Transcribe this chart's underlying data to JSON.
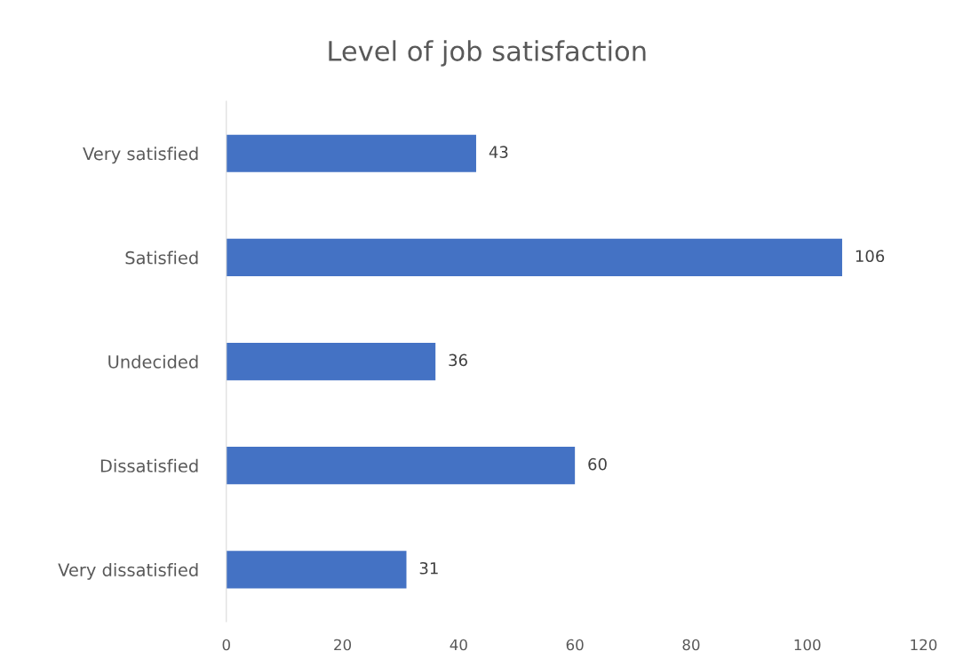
{
  "chart_data": {
    "type": "bar",
    "orientation": "horizontal",
    "title": "Level of job satisfaction",
    "categories": [
      "Very satisfied",
      "Satisfied",
      "Undecided",
      "Dissatisfied",
      "Very dissatisfied"
    ],
    "values": [
      43,
      106,
      36,
      60,
      31
    ],
    "color": "#4472c4",
    "xlim": [
      0,
      120
    ],
    "xticks": [
      0,
      20,
      40,
      60,
      80,
      100,
      120
    ],
    "grid": false,
    "data_labels": true
  }
}
